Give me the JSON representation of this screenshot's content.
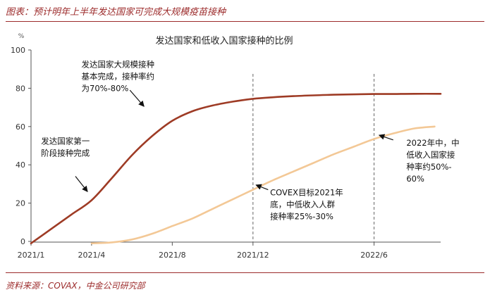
{
  "figure": {
    "title": "图表：预计明年上半年发达国家可完成大规模疫苗接种",
    "source": "资料来源：COVAX，中金公司研究部"
  },
  "colors": {
    "accent": "#9c2b2b",
    "developed": "#9e3b25",
    "low_income": "#f3c896",
    "axis": "#555555",
    "text": "#222222"
  },
  "chart_data": {
    "type": "line",
    "title": "发达国家和低收入国家接种的比例",
    "ylabel": "%",
    "ylim": [
      0,
      100
    ],
    "yticks": [
      0,
      20,
      40,
      60,
      80,
      100
    ],
    "xlim": [
      0,
      20.3
    ],
    "xticks": [
      {
        "label": "2021/1",
        "x": 0
      },
      {
        "label": "2021/4",
        "x": 3
      },
      {
        "label": "2021/8",
        "x": 7
      },
      {
        "label": "2021/12",
        "x": 11
      },
      {
        "label": "2022/6",
        "x": 17
      }
    ],
    "vlines": [
      11,
      17
    ],
    "grid": false,
    "series": [
      {
        "key": "developed",
        "color": "#9e3b25",
        "points": [
          [
            0,
            -1
          ],
          [
            1,
            6.5
          ],
          [
            2,
            14
          ],
          [
            3,
            21.5
          ],
          [
            4,
            33
          ],
          [
            5,
            45
          ],
          [
            6,
            55
          ],
          [
            7,
            63
          ],
          [
            8,
            68
          ],
          [
            9,
            71
          ],
          [
            10,
            73
          ],
          [
            11,
            74.5
          ],
          [
            12,
            75.3
          ],
          [
            13,
            75.9
          ],
          [
            14,
            76.3
          ],
          [
            15,
            76.6
          ],
          [
            16,
            76.8
          ],
          [
            17,
            77
          ],
          [
            18,
            77
          ],
          [
            19,
            77.1
          ],
          [
            20.3,
            77.1
          ]
        ]
      },
      {
        "key": "low_income",
        "color": "#f3c896",
        "points": [
          [
            3,
            -1
          ],
          [
            4,
            -0.5
          ],
          [
            5,
            1
          ],
          [
            6,
            4
          ],
          [
            7,
            8
          ],
          [
            8,
            12
          ],
          [
            9,
            17
          ],
          [
            10,
            22
          ],
          [
            11,
            27
          ],
          [
            12,
            32
          ],
          [
            13,
            36.5
          ],
          [
            14,
            41
          ],
          [
            15,
            45.5
          ],
          [
            16,
            49.5
          ],
          [
            17,
            53.5
          ],
          [
            18,
            56.5
          ],
          [
            19,
            59
          ],
          [
            20,
            60
          ]
        ]
      }
    ],
    "annotations": [
      {
        "name": "annotation-full-vaccination",
        "lines": [
          "发达国家大规模接种",
          "基本完成，接种率约",
          "为70%-80%"
        ],
        "x": 2.5,
        "y": 91,
        "arrow": [
          [
            4.9,
            79
          ],
          [
            5.6,
            70.5
          ]
        ]
      },
      {
        "name": "annotation-first-stage",
        "lines": [
          "发达国家第一",
          "阶段接种完成"
        ],
        "x": 0.5,
        "y": 51,
        "arrow": [
          [
            2.2,
            34
          ],
          [
            2.8,
            26
          ]
        ]
      },
      {
        "name": "annotation-covex-2021",
        "lines": [
          "COVEX目标2021年",
          "底，中低收入人群",
          "接种率25%-30%"
        ],
        "x": 11.85,
        "y": 24,
        "arrow": [
          [
            11.75,
            27
          ],
          [
            11.15,
            29.5
          ]
        ]
      },
      {
        "name": "annotation-2022-midyear",
        "lines": [
          "2022年中，中",
          "低收入国家接",
          "种率约50%-",
          "60%"
        ],
        "x": 18.6,
        "y": 50,
        "arrow": [
          [
            17.95,
            53
          ],
          [
            17.25,
            55.5
          ]
        ]
      }
    ]
  }
}
